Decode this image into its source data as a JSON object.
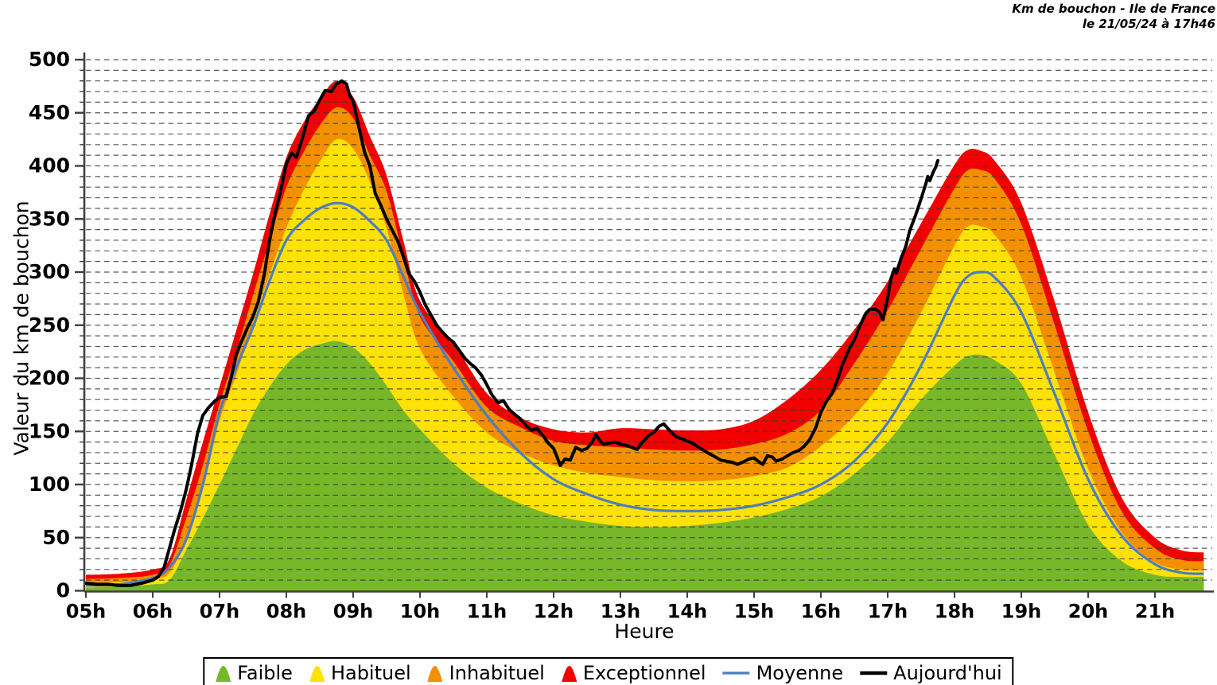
{
  "title": {
    "line1": "Km de bouchon - Ile de France",
    "line2": "le 21/05/24 à 17h46"
  },
  "axes": {
    "y_label": "Valeur du  km de bouchon",
    "x_label": "Heure",
    "x_tick_labels": [
      "05h",
      "06h",
      "07h",
      "08h",
      "09h",
      "10h",
      "11h",
      "12h",
      "13h",
      "14h",
      "15h",
      "16h",
      "17h",
      "18h",
      "19h",
      "20h",
      "21h"
    ],
    "y_tick_labels": [
      "0",
      "50",
      "100",
      "150",
      "200",
      "250",
      "300",
      "350",
      "400",
      "450",
      "500"
    ]
  },
  "legend": {
    "items": [
      {
        "label": "Faible",
        "color": "#77b82a",
        "marker": "bell"
      },
      {
        "label": "Habituel",
        "color": "#ffe205",
        "marker": "bell"
      },
      {
        "label": "Inhabituel",
        "color": "#f39000",
        "marker": "bell"
      },
      {
        "label": "Exceptionnel",
        "color": "#f30000",
        "marker": "bell"
      },
      {
        "label": "Moyenne",
        "color": "#4d7ebf",
        "marker": "line"
      },
      {
        "label": "Aujourd'hui",
        "color": "#000000",
        "marker": "line"
      }
    ]
  },
  "colors": {
    "faible": "#77b82a",
    "habituel": "#ffe205",
    "inhabituel": "#f39000",
    "exceptionnel": "#f30000",
    "moyenne": "#4d7ebf",
    "aujourdhui": "#000000",
    "grid": "#3c3c3c",
    "axis": "#3f3f3f"
  },
  "chart_data": {
    "type": "area",
    "title": "Km de bouchon - Ile de France, le 21/05/24 à 17h46",
    "xlabel": "Heure",
    "ylabel": "Valeur du km de bouchon",
    "xlim_hours": [
      5,
      21.73
    ],
    "ylim": [
      0,
      504
    ],
    "grid": {
      "y_minor_step": 10,
      "y_major_step": 50,
      "style": "dashed",
      "vertical": false
    },
    "x_tick_hours": [
      5,
      6,
      7,
      8,
      9,
      10,
      11,
      12,
      13,
      14,
      15,
      16,
      17,
      18,
      19,
      20,
      21
    ],
    "y_ticks": [
      0,
      50,
      100,
      150,
      200,
      250,
      300,
      350,
      400,
      450,
      500
    ],
    "legend_position": "bottom",
    "x_hours": [
      5,
      5.5,
      6,
      6.25,
      6.5,
      6.75,
      7,
      7.25,
      7.5,
      7.75,
      8,
      8.25,
      8.5,
      8.75,
      9,
      9.25,
      9.5,
      9.75,
      10,
      10.5,
      11,
      11.5,
      12,
      12.5,
      13,
      13.5,
      14,
      14.5,
      15,
      15.5,
      16,
      16.5,
      17,
      17.5,
      18,
      18.2,
      18.4,
      18.6,
      19,
      19.5,
      20,
      20.5,
      21,
      21.4,
      21.73
    ],
    "bands": [
      {
        "name": "Exceptionnel",
        "color": "#f30000",
        "upper": [
          15,
          16,
          20,
          30,
          85,
          140,
          192,
          245,
          298,
          355,
          408,
          440,
          463,
          480,
          465,
          428,
          391,
          330,
          273,
          233,
          186,
          163,
          152,
          149,
          153,
          152,
          151,
          152,
          160,
          180,
          208,
          246,
          291,
          346,
          401,
          415,
          414,
          405,
          365,
          272,
          168,
          88,
          50,
          38,
          36
        ]
      },
      {
        "name": "Inhabituel",
        "color": "#f39000",
        "upper": [
          11,
          12,
          15,
          24,
          68,
          118,
          176,
          225,
          278,
          330,
          380,
          412,
          438,
          455,
          445,
          410,
          376,
          315,
          258,
          216,
          173,
          154,
          141,
          137,
          135,
          133,
          132,
          133,
          138,
          148,
          170,
          214,
          264,
          322,
          379,
          396,
          396,
          388,
          345,
          250,
          150,
          75,
          40,
          29,
          28
        ]
      },
      {
        "name": "Habituel",
        "color": "#ffe205",
        "upper": [
          7,
          8,
          11,
          17,
          48,
          95,
          160,
          203,
          252,
          298,
          342,
          376,
          404,
          425,
          416,
          385,
          341,
          280,
          228,
          183,
          149,
          130,
          118,
          111,
          107,
          104,
          103,
          104,
          108,
          116,
          136,
          165,
          205,
          262,
          325,
          343,
          343,
          335,
          295,
          205,
          115,
          55,
          27,
          20,
          19
        ]
      },
      {
        "name": "Faible",
        "color": "#77b82a",
        "upper": [
          3,
          4,
          6,
          10,
          38,
          68,
          100,
          133,
          166,
          192,
          213,
          226,
          232,
          235,
          229,
          214,
          193,
          170,
          152,
          120,
          97,
          82,
          71,
          65,
          61,
          60,
          61,
          64,
          69,
          77,
          89,
          110,
          140,
          180,
          212,
          221,
          222,
          217,
          195,
          128,
          62,
          28,
          15,
          13,
          13
        ]
      }
    ],
    "average_line": {
      "name": "Moyenne",
      "color": "#4d7ebf",
      "values": [
        5,
        6,
        12,
        22,
        48,
        100,
        168,
        210,
        248,
        292,
        330,
        348,
        360,
        365,
        361,
        348,
        330,
        296,
        262,
        210,
        165,
        130,
        105,
        91,
        81,
        76,
        75,
        76,
        80,
        88,
        100,
        122,
        158,
        212,
        278,
        296,
        300,
        295,
        262,
        185,
        105,
        52,
        25,
        17,
        16
      ]
    },
    "today_line": {
      "name": "Aujourd'hui",
      "color": "#000000",
      "points": [
        [
          5.0,
          7
        ],
        [
          5.17,
          6
        ],
        [
          5.33,
          6
        ],
        [
          5.5,
          5
        ],
        [
          5.67,
          5
        ],
        [
          5.83,
          7
        ],
        [
          6.0,
          10
        ],
        [
          6.08,
          13
        ],
        [
          6.17,
          22
        ],
        [
          6.25,
          40
        ],
        [
          6.33,
          58
        ],
        [
          6.42,
          76
        ],
        [
          6.5,
          95
        ],
        [
          6.58,
          118
        ],
        [
          6.67,
          148
        ],
        [
          6.75,
          165
        ],
        [
          6.83,
          172
        ],
        [
          6.92,
          178
        ],
        [
          7.0,
          182
        ],
        [
          7.1,
          183
        ],
        [
          7.17,
          200
        ],
        [
          7.25,
          222
        ],
        [
          7.33,
          235
        ],
        [
          7.42,
          248
        ],
        [
          7.5,
          258
        ],
        [
          7.58,
          272
        ],
        [
          7.67,
          298
        ],
        [
          7.75,
          330
        ],
        [
          7.83,
          355
        ],
        [
          7.92,
          378
        ],
        [
          8.0,
          402
        ],
        [
          8.08,
          412
        ],
        [
          8.15,
          408
        ],
        [
          8.25,
          428
        ],
        [
          8.33,
          447
        ],
        [
          8.42,
          452
        ],
        [
          8.5,
          462
        ],
        [
          8.58,
          471
        ],
        [
          8.67,
          470
        ],
        [
          8.75,
          477
        ],
        [
          8.83,
          480
        ],
        [
          8.9,
          477
        ],
        [
          8.95,
          466
        ],
        [
          9.0,
          461
        ],
        [
          9.08,
          438
        ],
        [
          9.17,
          413
        ],
        [
          9.25,
          400
        ],
        [
          9.33,
          374
        ],
        [
          9.42,
          362
        ],
        [
          9.5,
          350
        ],
        [
          9.58,
          340
        ],
        [
          9.67,
          329
        ],
        [
          9.75,
          315
        ],
        [
          9.83,
          299
        ],
        [
          9.92,
          291
        ],
        [
          10.0,
          281
        ],
        [
          10.08,
          269
        ],
        [
          10.17,
          259
        ],
        [
          10.25,
          250
        ],
        [
          10.33,
          244
        ],
        [
          10.42,
          238
        ],
        [
          10.5,
          234
        ],
        [
          10.58,
          227
        ],
        [
          10.67,
          219
        ],
        [
          10.75,
          214
        ],
        [
          10.83,
          210
        ],
        [
          10.92,
          203
        ],
        [
          11.0,
          194
        ],
        [
          11.08,
          184
        ],
        [
          11.17,
          177
        ],
        [
          11.25,
          179
        ],
        [
          11.33,
          171
        ],
        [
          11.42,
          166
        ],
        [
          11.5,
          162
        ],
        [
          11.58,
          156
        ],
        [
          11.67,
          151
        ],
        [
          11.75,
          153
        ],
        [
          11.83,
          147
        ],
        [
          11.92,
          139
        ],
        [
          12.0,
          134
        ],
        [
          12.05,
          126
        ],
        [
          12.1,
          118
        ],
        [
          12.17,
          124
        ],
        [
          12.25,
          123
        ],
        [
          12.33,
          135
        ],
        [
          12.42,
          132
        ],
        [
          12.5,
          134
        ],
        [
          12.58,
          140
        ],
        [
          12.63,
          147
        ],
        [
          12.7,
          141
        ],
        [
          12.75,
          138
        ],
        [
          12.83,
          139
        ],
        [
          12.92,
          140
        ],
        [
          13.0,
          138
        ],
        [
          13.08,
          137
        ],
        [
          13.17,
          135
        ],
        [
          13.25,
          133
        ],
        [
          13.33,
          140
        ],
        [
          13.42,
          146
        ],
        [
          13.5,
          149
        ],
        [
          13.58,
          155
        ],
        [
          13.65,
          157
        ],
        [
          13.72,
          152
        ],
        [
          13.83,
          145
        ],
        [
          13.92,
          143
        ],
        [
          14.0,
          141
        ],
        [
          14.08,
          139
        ],
        [
          14.17,
          135
        ],
        [
          14.25,
          132
        ],
        [
          14.33,
          129
        ],
        [
          14.42,
          126
        ],
        [
          14.5,
          123
        ],
        [
          14.58,
          122
        ],
        [
          14.67,
          121
        ],
        [
          14.75,
          119
        ],
        [
          14.83,
          121
        ],
        [
          14.92,
          124
        ],
        [
          15.0,
          125
        ],
        [
          15.08,
          121
        ],
        [
          15.13,
          119
        ],
        [
          15.2,
          127
        ],
        [
          15.27,
          126
        ],
        [
          15.33,
          122
        ],
        [
          15.42,
          124
        ],
        [
          15.5,
          127
        ],
        [
          15.58,
          130
        ],
        [
          15.67,
          132
        ],
        [
          15.75,
          136
        ],
        [
          15.83,
          142
        ],
        [
          15.92,
          153
        ],
        [
          16.0,
          168
        ],
        [
          16.08,
          178
        ],
        [
          16.17,
          186
        ],
        [
          16.25,
          199
        ],
        [
          16.33,
          214
        ],
        [
          16.42,
          227
        ],
        [
          16.5,
          236
        ],
        [
          16.58,
          249
        ],
        [
          16.67,
          261
        ],
        [
          16.73,
          265
        ],
        [
          16.82,
          265
        ],
        [
          16.88,
          262
        ],
        [
          16.93,
          255
        ],
        [
          17.0,
          276
        ],
        [
          17.05,
          294
        ],
        [
          17.1,
          303
        ],
        [
          17.13,
          299
        ],
        [
          17.2,
          313
        ],
        [
          17.27,
          324
        ],
        [
          17.33,
          339
        ],
        [
          17.42,
          354
        ],
        [
          17.5,
          369
        ],
        [
          17.57,
          383
        ],
        [
          17.6,
          390
        ],
        [
          17.63,
          386
        ],
        [
          17.68,
          394
        ],
        [
          17.72,
          399
        ],
        [
          17.75,
          405
        ]
      ]
    }
  }
}
